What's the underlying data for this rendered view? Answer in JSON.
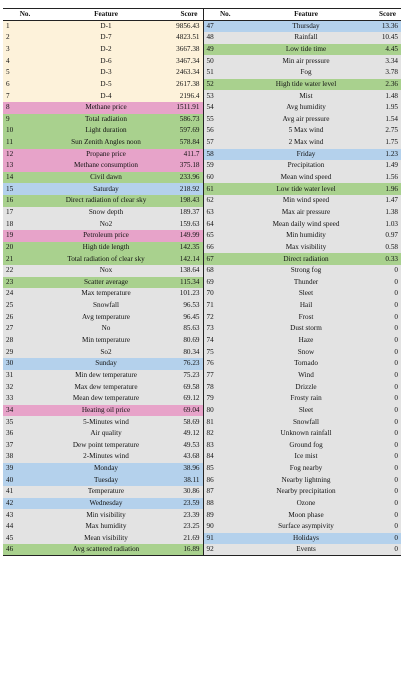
{
  "headers": {
    "no": "No.",
    "feature": "Feature",
    "score": "Score"
  },
  "colors": {
    "d": "#fdf2da",
    "g": "#a9d18e",
    "p": "#e7a3c9",
    "b": "#b4d1ec",
    "n": "#e3e3e3"
  },
  "left": [
    {
      "no": "1",
      "feature": "D-1",
      "score": "9856.43",
      "c": "d"
    },
    {
      "no": "2",
      "feature": "D-7",
      "score": "4823.51",
      "c": "d"
    },
    {
      "no": "3",
      "feature": "D-2",
      "score": "3667.38",
      "c": "d"
    },
    {
      "no": "4",
      "feature": "D-6",
      "score": "3467.34",
      "c": "d"
    },
    {
      "no": "5",
      "feature": "D-3",
      "score": "2463.34",
      "c": "d"
    },
    {
      "no": "6",
      "feature": "D-5",
      "score": "2617.38",
      "c": "d"
    },
    {
      "no": "7",
      "feature": "D-4",
      "score": "2196.4",
      "c": "d"
    },
    {
      "no": "8",
      "feature": "Methane price",
      "score": "1511.91",
      "c": "p"
    },
    {
      "no": "9",
      "feature": "Total radiation",
      "score": "586.73",
      "c": "g"
    },
    {
      "no": "10",
      "feature": "Light duration",
      "score": "597.69",
      "c": "g"
    },
    {
      "no": "11",
      "feature": "Sun Zenith Angles noon",
      "score": "578.84",
      "c": "g"
    },
    {
      "no": "12",
      "feature": "Propane price",
      "score": "411.7",
      "c": "p"
    },
    {
      "no": "13",
      "feature": "Methane consumption",
      "score": "375.18",
      "c": "p"
    },
    {
      "no": "14",
      "feature": "Civil dawn",
      "score": "233.96",
      "c": "g"
    },
    {
      "no": "15",
      "feature": "Saturday",
      "score": "218.92",
      "c": "b"
    },
    {
      "no": "16",
      "feature": "Direct radiation of clear sky",
      "score": "198.43",
      "c": "g"
    },
    {
      "no": "17",
      "feature": "Snow depth",
      "score": "189.37",
      "c": "n"
    },
    {
      "no": "18",
      "feature": "No2",
      "score": "159.63",
      "c": "n"
    },
    {
      "no": "19",
      "feature": "Petroleum price",
      "score": "149.99",
      "c": "p"
    },
    {
      "no": "20",
      "feature": "High tide length",
      "score": "142.35",
      "c": "g"
    },
    {
      "no": "21",
      "feature": "Total radiation of clear sky",
      "score": "142.14",
      "c": "g"
    },
    {
      "no": "22",
      "feature": "Nox",
      "score": "138.64",
      "c": "n"
    },
    {
      "no": "23",
      "feature": "Scatter average",
      "score": "115.34",
      "c": "g"
    },
    {
      "no": "24",
      "feature": "Max temperature",
      "score": "101.23",
      "c": "n"
    },
    {
      "no": "25",
      "feature": "Snowfall",
      "score": "96.53",
      "c": "n"
    },
    {
      "no": "26",
      "feature": "Avg temperature",
      "score": "96.45",
      "c": "n"
    },
    {
      "no": "27",
      "feature": "No",
      "score": "85.63",
      "c": "n"
    },
    {
      "no": "28",
      "feature": "Min temperature",
      "score": "80.69",
      "c": "n"
    },
    {
      "no": "29",
      "feature": "So2",
      "score": "80.34",
      "c": "n"
    },
    {
      "no": "30",
      "feature": "Sunday",
      "score": "76.23",
      "c": "b"
    },
    {
      "no": "31",
      "feature": "Min dew temperature",
      "score": "75.23",
      "c": "n"
    },
    {
      "no": "32",
      "feature": "Max dew temperature",
      "score": "69.58",
      "c": "n"
    },
    {
      "no": "33",
      "feature": "Mean dew temperature",
      "score": "69.12",
      "c": "n"
    },
    {
      "no": "34",
      "feature": "Heating oil price",
      "score": "69.04",
      "c": "p"
    },
    {
      "no": "35",
      "feature": "5-Minutes wind",
      "score": "58.69",
      "c": "n"
    },
    {
      "no": "36",
      "feature": "Air quality",
      "score": "49.12",
      "c": "n"
    },
    {
      "no": "37",
      "feature": "Dew point temperature",
      "score": "49.53",
      "c": "n"
    },
    {
      "no": "38",
      "feature": "2-Minutes wind",
      "score": "43.68",
      "c": "n"
    },
    {
      "no": "39",
      "feature": "Monday",
      "score": "38.96",
      "c": "b"
    },
    {
      "no": "40",
      "feature": "Tuesday",
      "score": "38.11",
      "c": "b"
    },
    {
      "no": "41",
      "feature": "Temperature",
      "score": "30.86",
      "c": "n"
    },
    {
      "no": "42",
      "feature": "Wednesday",
      "score": "23.59",
      "c": "b"
    },
    {
      "no": "43",
      "feature": "Min visibility",
      "score": "23.39",
      "c": "n"
    },
    {
      "no": "44",
      "feature": "Max humidity",
      "score": "23.25",
      "c": "n"
    },
    {
      "no": "45",
      "feature": "Mean visibility",
      "score": "21.69",
      "c": "n"
    },
    {
      "no": "46",
      "feature": "Avg scattered  radiation",
      "score": "16.89",
      "c": "g"
    }
  ],
  "right": [
    {
      "no": "47",
      "feature": "Thursday",
      "score": "13.36",
      "c": "b"
    },
    {
      "no": "48",
      "feature": "Rainfall",
      "score": "10.45",
      "c": "n"
    },
    {
      "no": "49",
      "feature": "Low tide time",
      "score": "4.45",
      "c": "g"
    },
    {
      "no": "50",
      "feature": "Min air pressure",
      "score": "3.34",
      "c": "n"
    },
    {
      "no": "51",
      "feature": "Fog",
      "score": "3.78",
      "c": "n"
    },
    {
      "no": "52",
      "feature": "High tide water level",
      "score": "2.36",
      "c": "g"
    },
    {
      "no": "53",
      "feature": "Mist",
      "score": "1.48",
      "c": "n"
    },
    {
      "no": "54",
      "feature": "Avg humidity",
      "score": "1.95",
      "c": "n"
    },
    {
      "no": "55",
      "feature": "Avg air pressure",
      "score": "1.54",
      "c": "n"
    },
    {
      "no": "56",
      "feature": "5 Max wind",
      "score": "2.75",
      "c": "n"
    },
    {
      "no": "57",
      "feature": "2 Max wind",
      "score": "1.75",
      "c": "n"
    },
    {
      "no": "58",
      "feature": "Friday",
      "score": "1.23",
      "c": "b"
    },
    {
      "no": "59",
      "feature": "Precipitation",
      "score": "1.49",
      "c": "n"
    },
    {
      "no": "60",
      "feature": "Mean wind speed",
      "score": "1.56",
      "c": "n"
    },
    {
      "no": "61",
      "feature": "Low tide water level",
      "score": "1.96",
      "c": "g"
    },
    {
      "no": "62",
      "feature": "Min wind speed",
      "score": "1.47",
      "c": "n"
    },
    {
      "no": "63",
      "feature": "Max air pressure",
      "score": "1.38",
      "c": "n"
    },
    {
      "no": "64",
      "feature": "Mean daily wind speed",
      "score": "1.03",
      "c": "n"
    },
    {
      "no": "65",
      "feature": "Min humidity",
      "score": "0.97",
      "c": "n"
    },
    {
      "no": "66",
      "feature": "Max visibility",
      "score": "0.58",
      "c": "n"
    },
    {
      "no": "67",
      "feature": "Direct radiation",
      "score": "0.33",
      "c": "g"
    },
    {
      "no": "68",
      "feature": "Strong fog",
      "score": "0",
      "c": "n"
    },
    {
      "no": "69",
      "feature": "Thunder",
      "score": "0",
      "c": "n"
    },
    {
      "no": "70",
      "feature": "Sleet",
      "score": "0",
      "c": "n"
    },
    {
      "no": "71",
      "feature": "Hail",
      "score": "0",
      "c": "n"
    },
    {
      "no": "72",
      "feature": "Frost",
      "score": "0",
      "c": "n"
    },
    {
      "no": "73",
      "feature": "Dust storm",
      "score": "0",
      "c": "n"
    },
    {
      "no": "74",
      "feature": "Haze",
      "score": "0",
      "c": "n"
    },
    {
      "no": "75",
      "feature": "Snow",
      "score": "0",
      "c": "n"
    },
    {
      "no": "76",
      "feature": "Tornado",
      "score": "0",
      "c": "n"
    },
    {
      "no": "77",
      "feature": "Wind",
      "score": "0",
      "c": "n"
    },
    {
      "no": "78",
      "feature": "Drizzle",
      "score": "0",
      "c": "n"
    },
    {
      "no": "79",
      "feature": "Frosty rain",
      "score": "0",
      "c": "n"
    },
    {
      "no": "80",
      "feature": "Sleet",
      "score": "0",
      "c": "n"
    },
    {
      "no": "81",
      "feature": "Snowfall",
      "score": "0",
      "c": "n"
    },
    {
      "no": "82",
      "feature": "Unknown rainfall",
      "score": "0",
      "c": "n"
    },
    {
      "no": "83",
      "feature": "Ground fog",
      "score": "0",
      "c": "n"
    },
    {
      "no": "84",
      "feature": "Ice mist",
      "score": "0",
      "c": "n"
    },
    {
      "no": "85",
      "feature": "Fog nearby",
      "score": "0",
      "c": "n"
    },
    {
      "no": "86",
      "feature": "Nearby lightning",
      "score": "0",
      "c": "n"
    },
    {
      "no": "87",
      "feature": "Nearby precipitation",
      "score": "0",
      "c": "n"
    },
    {
      "no": "88",
      "feature": "Ozone",
      "score": "0",
      "c": "n"
    },
    {
      "no": "89",
      "feature": "Moon phase",
      "score": "0",
      "c": "n"
    },
    {
      "no": "90",
      "feature": "Surface asympivity",
      "score": "0",
      "c": "n"
    },
    {
      "no": "91",
      "feature": "Holidays",
      "score": "0",
      "c": "b"
    },
    {
      "no": "92",
      "feature": "Events",
      "score": "0",
      "c": "n"
    }
  ]
}
